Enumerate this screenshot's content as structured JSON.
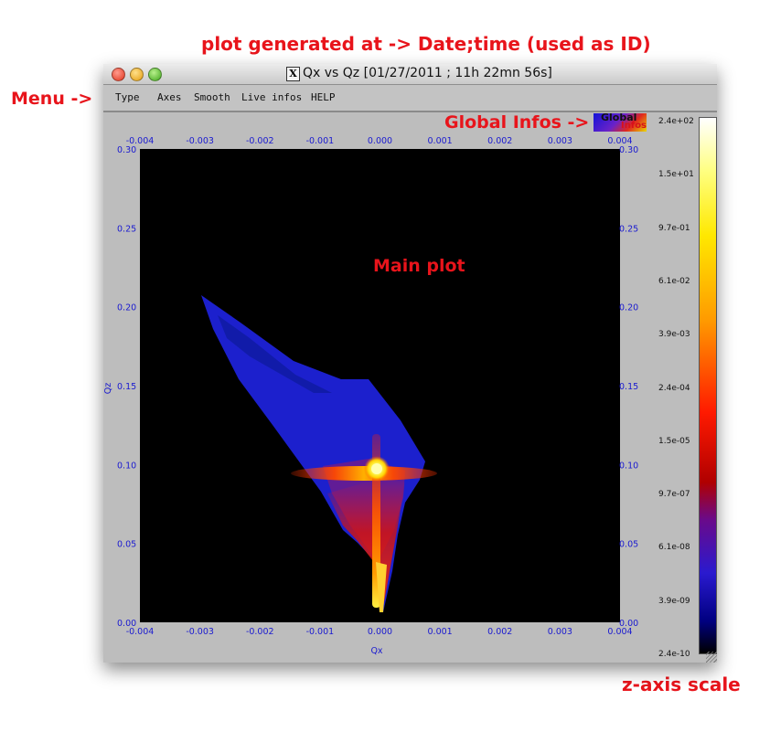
{
  "annotations": {
    "top": "plot generated at -> Date;time (used as ID)",
    "menu": "Menu ->",
    "global": "Global Infos ->",
    "main": "Main plot",
    "zscale": "z-axis scale"
  },
  "window": {
    "title": "Qx vs Qz [01/27/2011 ; 11h 22mn 56s]",
    "x_icon": "X"
  },
  "menu": {
    "items": [
      "Type",
      "Axes",
      "Smooth",
      "Live infos",
      "HELP"
    ]
  },
  "global_logo": {
    "line1": "Global",
    "line2": "Infos"
  },
  "plot": {
    "xlabel": "Qx",
    "ylabel": "Qz",
    "x_ticks": [
      "-0.004",
      "-0.003",
      "-0.002",
      "-0.001",
      "0.000",
      "0.001",
      "0.002",
      "0.003",
      "0.004"
    ],
    "y_ticks": [
      "0.30",
      "0.25",
      "0.20",
      "0.15",
      "0.10",
      "0.05",
      "0.00"
    ],
    "axis_color": "#1a1ad0"
  },
  "zscale": {
    "ticks": [
      "2.4e+02",
      "1.5e+01",
      "9.7e-01",
      "6.1e-02",
      "3.9e-03",
      "2.4e-04",
      "1.5e-05",
      "9.7e-07",
      "6.1e-08",
      "3.9e-09",
      "2.4e-10"
    ]
  },
  "colors": {
    "annotation": "#e8141b",
    "background": "#bdbdbd"
  }
}
